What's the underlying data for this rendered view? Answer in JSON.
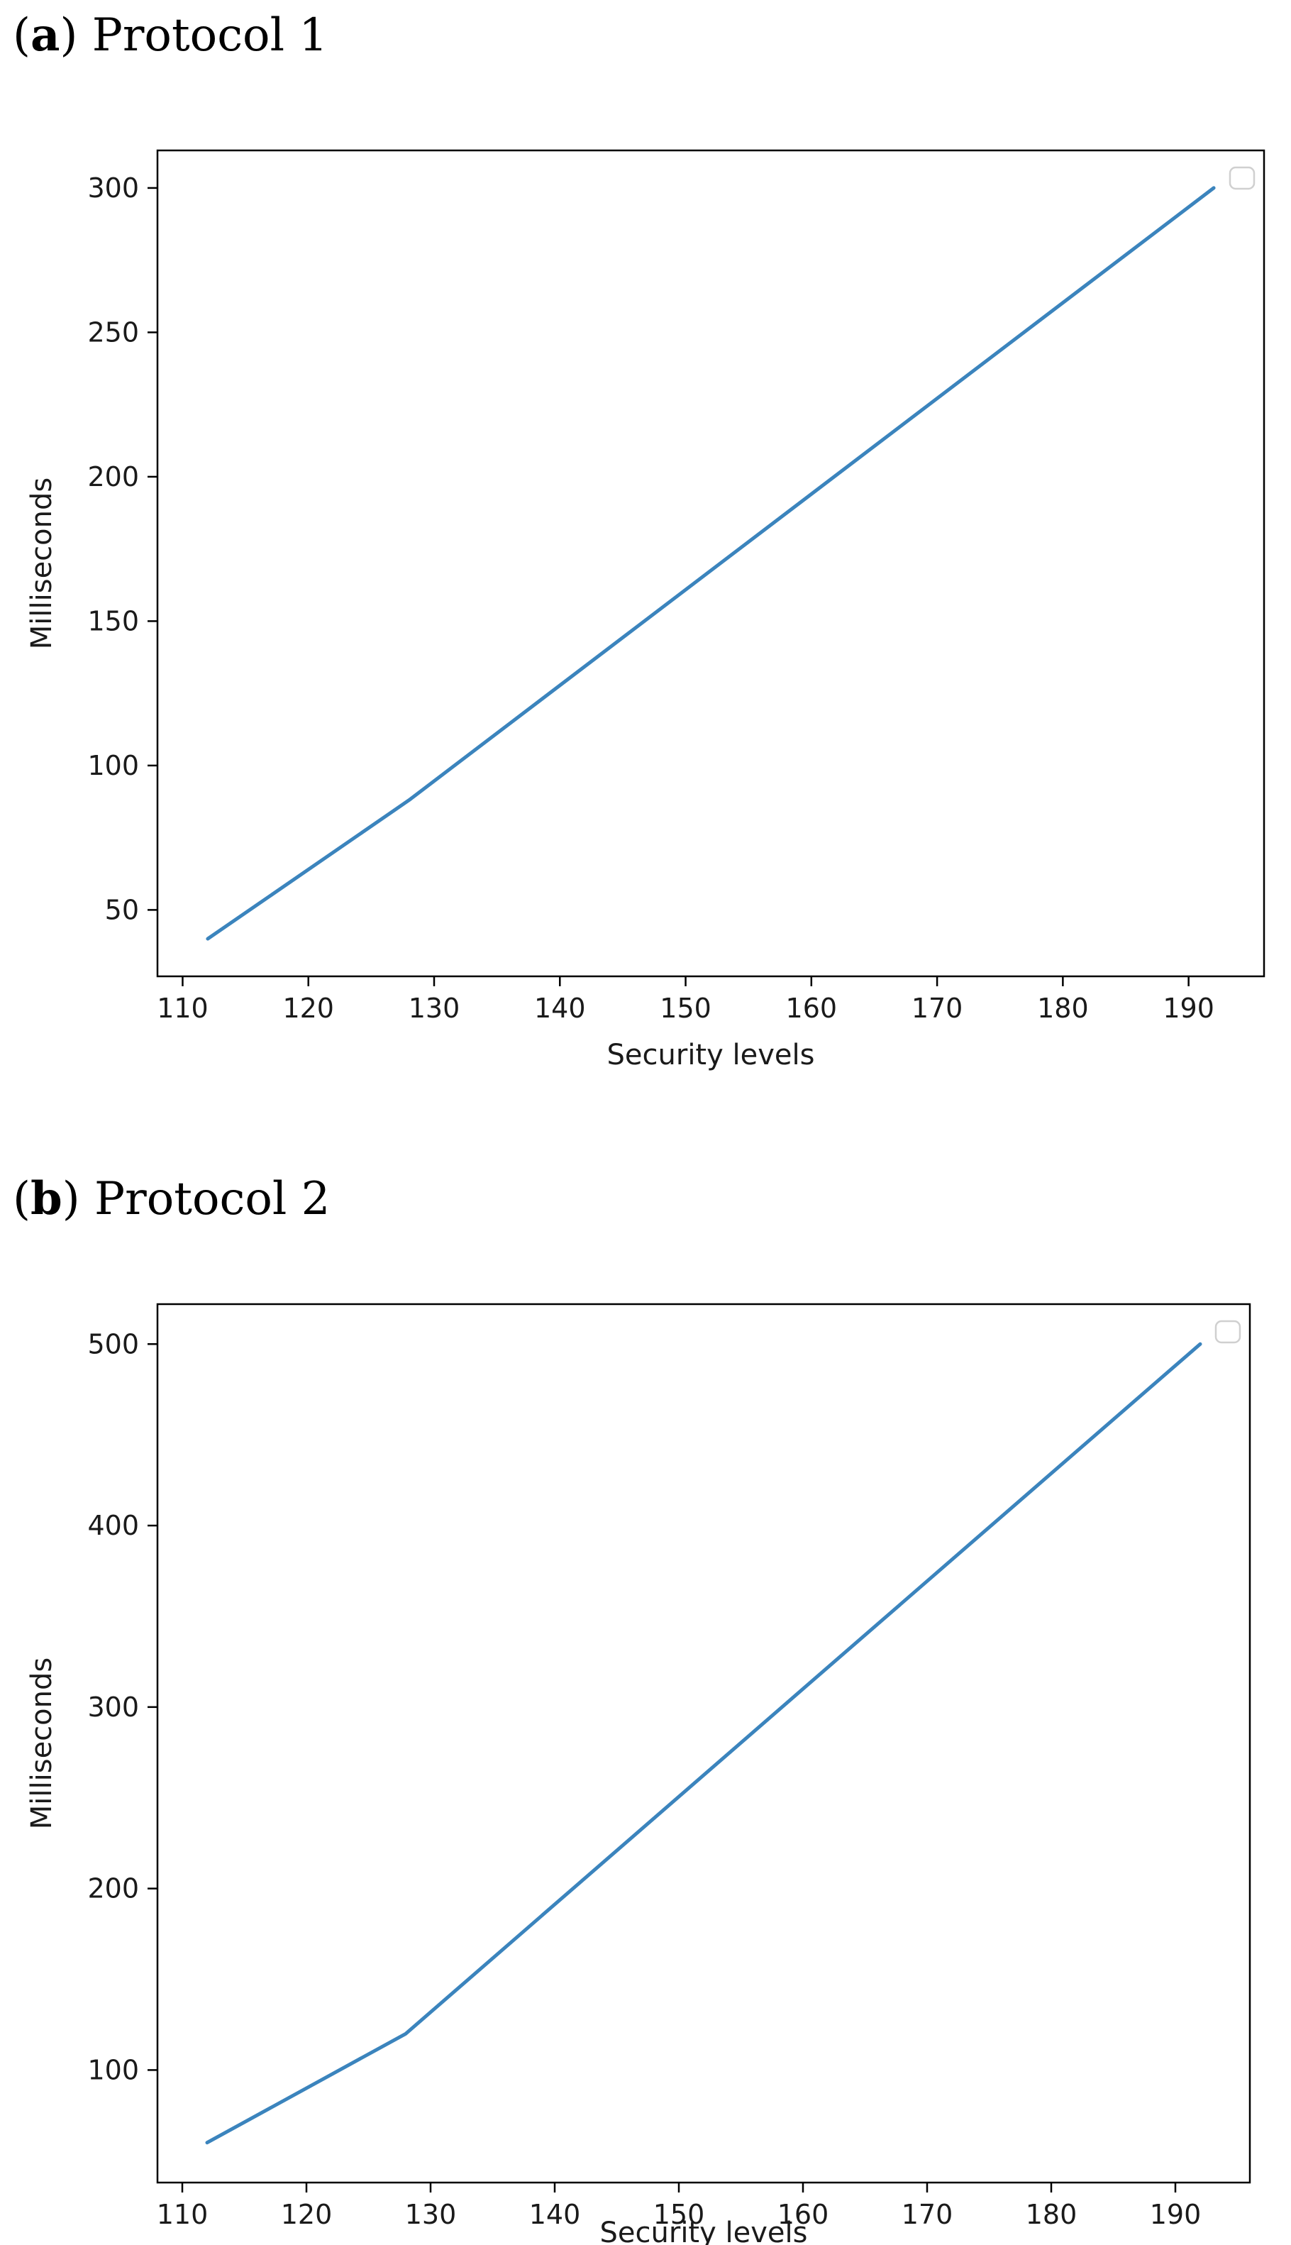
{
  "chart_data": [
    {
      "type": "line",
      "panel_letter": "a",
      "panel_title": "Protocol 1",
      "xlabel": "Security levels",
      "ylabel": "Milliseconds",
      "x": [
        112,
        128,
        192
      ],
      "series": [
        {
          "values": [
            40,
            88,
            300
          ],
          "color": "#3b84bd"
        }
      ],
      "xlim": [
        108,
        196
      ],
      "ylim": [
        27,
        313
      ],
      "xticks": [
        110,
        120,
        130,
        140,
        150,
        160,
        170,
        180,
        190
      ],
      "yticks": [
        50,
        100,
        150,
        200,
        250,
        300
      ],
      "grid": false,
      "legend": "top-right (empty)"
    },
    {
      "type": "line",
      "panel_letter": "b",
      "panel_title": "Protocol 2",
      "xlabel": "Security levels",
      "ylabel": "Milliseconds",
      "x": [
        112,
        128,
        192
      ],
      "series": [
        {
          "values": [
            60,
            120,
            500
          ],
          "color": "#3b84bd"
        }
      ],
      "xlim": [
        108,
        196
      ],
      "ylim": [
        38,
        522
      ],
      "xticks": [
        110,
        120,
        130,
        140,
        150,
        160,
        170,
        180,
        190
      ],
      "yticks": [
        100,
        200,
        300,
        400,
        500
      ],
      "grid": false,
      "legend": "top-right (empty)"
    }
  ]
}
